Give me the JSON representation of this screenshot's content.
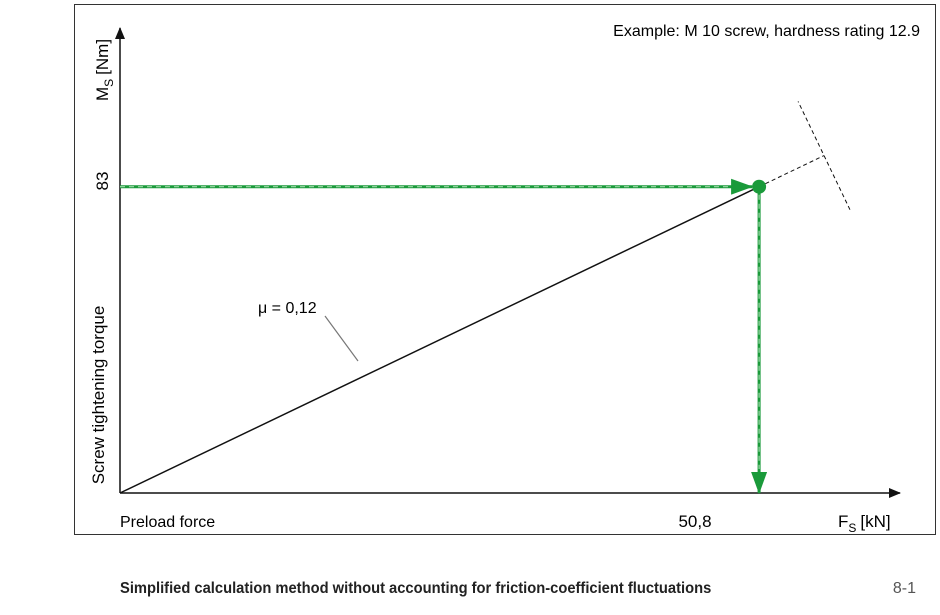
{
  "chart_data": {
    "type": "line",
    "example_note": "Example: M 10 screw, hardness rating 12.9",
    "y_axis": {
      "symbol": "M",
      "subscript": "S",
      "unit": "[Nm]",
      "label": "Screw tightening torque"
    },
    "x_axis": {
      "symbol": "F",
      "subscript": "S",
      "unit": "[kN]",
      "label": "Preload force"
    },
    "series": [
      {
        "name": "μ = 0,12",
        "x": [
          0,
          50.8
        ],
        "y": [
          0,
          83
        ]
      }
    ],
    "operating_point": {
      "x": 50.8,
      "y": 83,
      "x_label": "50,8",
      "y_label": "83"
    },
    "xlim": [
      0,
      62
    ],
    "ylim": [
      0,
      126
    ],
    "grid": false,
    "colors": {
      "guide": "#1a9a3a",
      "guide_dash": "#9ed7a9",
      "line": "#111111",
      "leader": "#777777"
    }
  },
  "caption": {
    "title": "Simplified calculation method without accounting for friction-coefficient fluctuations",
    "number": "8-1"
  }
}
